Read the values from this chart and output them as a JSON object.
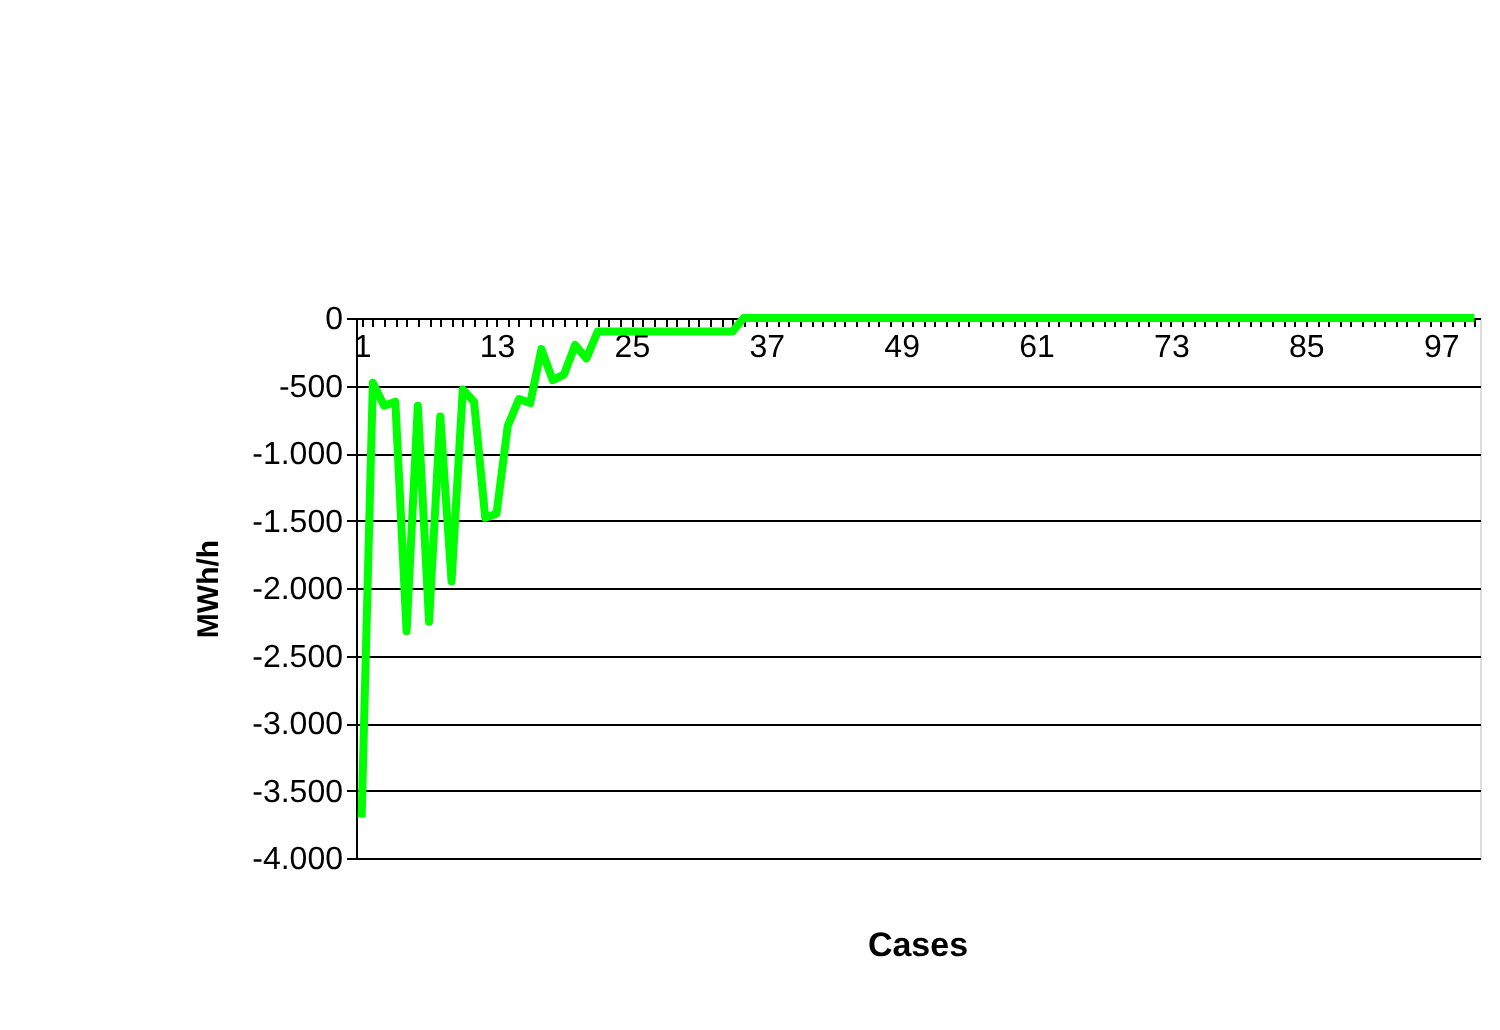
{
  "chart_data": {
    "type": "line",
    "xlabel": "Cases",
    "ylabel": "MWh/h",
    "categories": [
      "1",
      null,
      null,
      null,
      null,
      null,
      null,
      null,
      null,
      null,
      null,
      null,
      "13",
      null,
      null,
      null,
      null,
      null,
      null,
      null,
      null,
      null,
      null,
      null,
      "25",
      null,
      null,
      null,
      null,
      null,
      null,
      null,
      null,
      null,
      null,
      null,
      "37",
      null,
      null,
      null,
      null,
      null,
      null,
      null,
      null,
      null,
      null,
      null,
      "49",
      null,
      null,
      null,
      null,
      null,
      null,
      null,
      null,
      null,
      null,
      null,
      "61",
      null,
      null,
      null,
      null,
      null,
      null,
      null,
      null,
      null,
      null,
      null,
      "73",
      null,
      null,
      null,
      null,
      null,
      null,
      null,
      null,
      null,
      null,
      null,
      "85",
      null,
      null,
      null,
      null,
      null,
      null,
      null,
      null,
      null,
      null,
      null,
      "97",
      null,
      null,
      null
    ],
    "values": [
      -3700,
      -480,
      -650,
      -620,
      -2320,
      -650,
      -2250,
      -730,
      -1950,
      -530,
      -620,
      -1480,
      -1450,
      -800,
      -600,
      -630,
      -230,
      -460,
      -420,
      -200,
      -300,
      -100,
      -100,
      -100,
      -100,
      -100,
      -100,
      -100,
      -100,
      -100,
      -100,
      -100,
      -100,
      -100,
      0,
      0,
      0,
      0,
      0,
      0,
      0,
      0,
      0,
      0,
      0,
      0,
      0,
      0,
      0,
      0,
      0,
      0,
      0,
      0,
      0,
      0,
      0,
      0,
      0,
      0,
      0,
      0,
      0,
      0,
      0,
      0,
      0,
      0,
      0,
      0,
      0,
      0,
      0,
      0,
      0,
      0,
      0,
      0,
      0,
      0,
      0,
      0,
      0,
      0,
      0,
      0,
      0,
      0,
      0,
      0,
      0,
      0,
      0,
      0,
      0,
      0,
      0,
      0,
      0,
      0
    ],
    "color": "#00ff00",
    "line_style": "solid",
    "ylim": [
      -4000,
      0
    ],
    "yticks": [
      0,
      -500,
      {
        "value": -1000,
        "label": "-1.000"
      },
      {
        "value": -1500,
        "label": "-1.500"
      },
      {
        "value": -2000,
        "label": "-2.000"
      },
      {
        "value": -2500,
        "label": "-2.500"
      },
      {
        "value": -3000,
        "label": "-3.000"
      },
      {
        "value": -3500,
        "label": "-3.500"
      },
      {
        "value": -4000,
        "label": "-4.000"
      }
    ],
    "grid": "y"
  }
}
